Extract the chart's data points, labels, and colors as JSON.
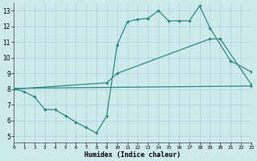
{
  "line1_x": [
    0,
    1,
    2,
    3,
    4,
    5,
    6,
    7,
    8,
    9,
    10,
    11,
    12,
    13,
    14,
    15,
    16,
    17,
    18,
    19,
    21,
    23
  ],
  "line1_y": [
    8.0,
    7.85,
    7.5,
    6.7,
    6.7,
    6.3,
    5.9,
    5.55,
    5.2,
    6.3,
    10.8,
    12.3,
    12.45,
    12.5,
    13.0,
    12.35,
    12.35,
    12.35,
    13.3,
    11.9,
    9.8,
    9.1
  ],
  "line2_x": [
    0,
    9,
    10,
    19,
    20,
    23
  ],
  "line2_y": [
    8.0,
    8.4,
    9.0,
    11.2,
    11.2,
    8.3
  ],
  "line3_x": [
    0,
    23
  ],
  "line3_y": [
    8.05,
    8.2
  ],
  "line_color": "#2d8b7a",
  "bg_color": "#ceeaec",
  "grid_color": "#afd8da",
  "xlabel": "Humidex (Indice chaleur)",
  "xtick_labels": [
    "0",
    "1",
    "2",
    "3",
    "4",
    "5",
    "6",
    "7",
    "8",
    "9",
    "10",
    "11",
    "12",
    "13",
    "14",
    "15",
    "16",
    "17",
    "18",
    "19",
    "20",
    "21",
    "22",
    "23"
  ],
  "xtick_vals": [
    0,
    1,
    2,
    3,
    4,
    5,
    6,
    7,
    8,
    9,
    10,
    11,
    12,
    13,
    14,
    15,
    16,
    17,
    18,
    19,
    20,
    21,
    22,
    23
  ],
  "ytick_vals": [
    5,
    6,
    7,
    8,
    9,
    10,
    11,
    12,
    13
  ],
  "xlim": [
    0,
    23
  ],
  "ylim": [
    4.6,
    13.5
  ]
}
